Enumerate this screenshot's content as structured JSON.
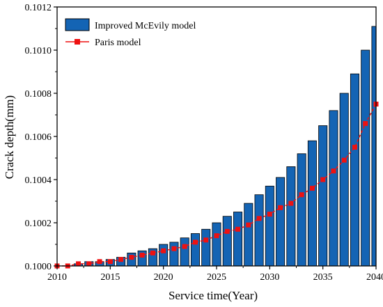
{
  "chart_data": {
    "type": "bar",
    "xlabel": "Service time(Year)",
    "ylabel": "Crack depth(mm)",
    "xlim": [
      2010,
      2040
    ],
    "ylim": [
      0.1,
      0.1012
    ],
    "xticks": [
      "2010",
      "2015",
      "2020",
      "2025",
      "2030",
      "2035",
      "2040"
    ],
    "yticks": [
      "0.1000",
      "0.1002",
      "0.1004",
      "0.1006",
      "0.1008",
      "0.1010",
      "0.1012"
    ],
    "legend_position": "top-left",
    "grid": false,
    "series": [
      {
        "name": "Improved McEvily model",
        "kind": "bar",
        "color": "#1464b4",
        "x": [
          2010,
          2011,
          2012,
          2013,
          2014,
          2015,
          2016,
          2017,
          2018,
          2019,
          2020,
          2021,
          2022,
          2023,
          2024,
          2025,
          2026,
          2027,
          2028,
          2029,
          2030,
          2031,
          2032,
          2033,
          2034,
          2035,
          2036,
          2037,
          2038,
          2039,
          2040
        ],
        "values": [
          0.1,
          0.1,
          0.10001,
          0.10002,
          0.10002,
          0.10003,
          0.10004,
          0.10006,
          0.10007,
          0.10008,
          0.1001,
          0.10011,
          0.10013,
          0.10015,
          0.10017,
          0.1002,
          0.10023,
          0.10025,
          0.10029,
          0.10033,
          0.10037,
          0.10041,
          0.10046,
          0.10052,
          0.10058,
          0.10065,
          0.10072,
          0.1008,
          0.10089,
          0.101,
          0.10111
        ]
      },
      {
        "name": "Paris model",
        "kind": "line-marker",
        "color": "#ee1111",
        "x": [
          2010,
          2011,
          2012,
          2013,
          2014,
          2015,
          2016,
          2017,
          2018,
          2019,
          2020,
          2021,
          2022,
          2023,
          2024,
          2025,
          2026,
          2027,
          2028,
          2029,
          2030,
          2031,
          2032,
          2033,
          2034,
          2035,
          2036,
          2037,
          2038,
          2039,
          2040
        ],
        "values": [
          0.1,
          0.1,
          0.10001,
          0.10001,
          0.10002,
          0.10002,
          0.10003,
          0.10004,
          0.10005,
          0.10006,
          0.10007,
          0.10008,
          0.10009,
          0.10011,
          0.10012,
          0.10014,
          0.10016,
          0.10017,
          0.10019,
          0.10022,
          0.10024,
          0.10027,
          0.10029,
          0.10033,
          0.10036,
          0.1004,
          0.10044,
          0.10049,
          0.10055,
          0.10066,
          0.10075
        ]
      }
    ]
  }
}
